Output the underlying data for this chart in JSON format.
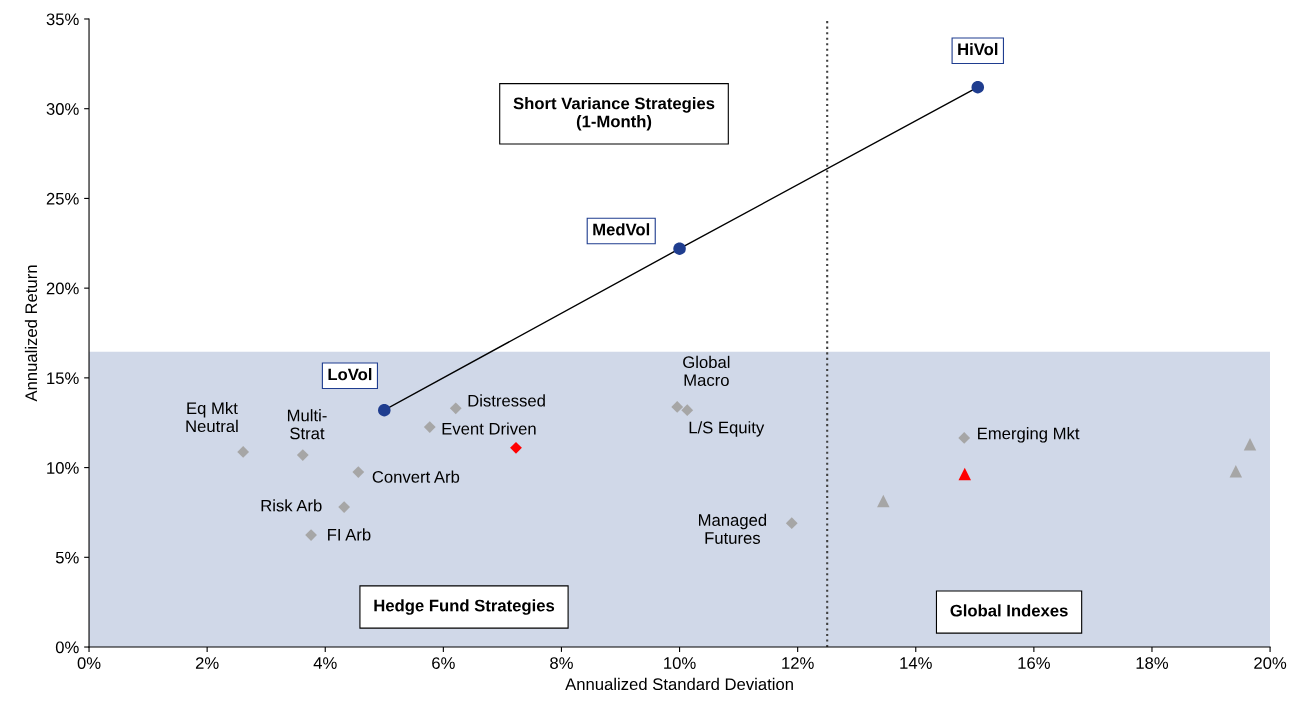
{
  "chart_data": {
    "type": "scatter",
    "xlabel": "Annualized Standard Deviation",
    "ylabel": "Annualized Return",
    "xlim": [
      0,
      20
    ],
    "ylim": [
      0,
      35
    ],
    "xticks": [
      {
        "value": 0,
        "label": "0%"
      },
      {
        "value": 2,
        "label": "2%"
      },
      {
        "value": 4,
        "label": "4%"
      },
      {
        "value": 6,
        "label": "6%"
      },
      {
        "value": 8,
        "label": "8%"
      },
      {
        "value": 10,
        "label": "10%"
      },
      {
        "value": 12,
        "label": "12%"
      },
      {
        "value": 14,
        "label": "14%"
      },
      {
        "value": 16,
        "label": "16%"
      },
      {
        "value": 18,
        "label": "18%"
      },
      {
        "value": 20,
        "label": "20%"
      }
    ],
    "yticks": [
      {
        "value": 0,
        "label": "0%"
      },
      {
        "value": 5,
        "label": "5%"
      },
      {
        "value": 10,
        "label": "10%"
      },
      {
        "value": 15,
        "label": "15%"
      },
      {
        "value": 20,
        "label": "20%"
      },
      {
        "value": 25,
        "label": "25%"
      },
      {
        "value": 30,
        "label": "30%"
      },
      {
        "value": 35,
        "label": "35%"
      }
    ],
    "grid": false,
    "series": [
      {
        "type": "line",
        "color": "#000000",
        "marker": "none",
        "line_style": "solid",
        "x": [
          5.0,
          10.0,
          15.05
        ],
        "values": [
          13.2,
          22.2,
          31.2
        ]
      },
      {
        "color": "#1f3d8f",
        "marker": "circle",
        "x": [
          5.0,
          10.0,
          15.05
        ],
        "values": [
          13.2,
          22.2,
          31.2
        ]
      },
      {
        "color": "#a6a6a6",
        "marker": "diamond",
        "x": [
          2.61,
          3.62,
          4.56,
          4.32,
          3.76,
          5.77,
          6.21,
          9.96,
          10.13,
          11.9,
          14.82
        ],
        "values": [
          10.87,
          10.7,
          9.75,
          7.8,
          6.24,
          12.26,
          13.3,
          13.38,
          13.2,
          6.9,
          11.65
        ]
      },
      {
        "color": "#ff0000",
        "marker": "diamond",
        "x": [
          7.23
        ],
        "values": [
          11.1
        ]
      },
      {
        "color": "#a6a6a6",
        "marker": "triangle",
        "x": [
          13.45,
          19.66,
          19.42
        ],
        "values": [
          8.14,
          11.3,
          9.8
        ]
      },
      {
        "color": "#ff0000",
        "marker": "triangle",
        "x": [
          14.83
        ],
        "values": [
          9.64
        ]
      }
    ],
    "bands": [
      {
        "axis": "y",
        "from": 0,
        "to": 16.45,
        "color": "#d0d8e8"
      }
    ],
    "ref_lines": [
      {
        "axis": "x",
        "value": 12.5,
        "color": "#404040",
        "line_style": "dotted"
      }
    ],
    "annotations": [
      {
        "text": "LoVol",
        "x": 5.0,
        "y": 13.2
      },
      {
        "text": "MedVol",
        "x": 10.0,
        "y": 22.2
      },
      {
        "text": "HiVol",
        "x": 15.05,
        "y": 31.2
      },
      {
        "text": "Eq Mkt\nNeutral",
        "x": 2.61,
        "y": 10.87
      },
      {
        "text": "Multi-\nStrat",
        "x": 3.62,
        "y": 10.7
      },
      {
        "text": "Convert Arb",
        "x": 4.56,
        "y": 9.75
      },
      {
        "text": "Risk Arb",
        "x": 4.32,
        "y": 7.8
      },
      {
        "text": "FI Arb",
        "x": 3.76,
        "y": 6.24
      },
      {
        "text": "Event Driven",
        "x": 5.77,
        "y": 12.26
      },
      {
        "text": "Distressed",
        "x": 6.21,
        "y": 13.3
      },
      {
        "text": "Global\nMacro",
        "x": 9.96,
        "y": 13.38
      },
      {
        "text": "L/S Equity",
        "x": 10.13,
        "y": 13.2
      },
      {
        "text": "Managed\nFutures",
        "x": 11.9,
        "y": 6.9
      },
      {
        "text": "Emerging Mkt",
        "x": 14.82,
        "y": 11.65
      },
      "Short Variance Strategies\n(1-Month)",
      "Hedge Fund Strategies",
      "Global Indexes"
    ]
  }
}
